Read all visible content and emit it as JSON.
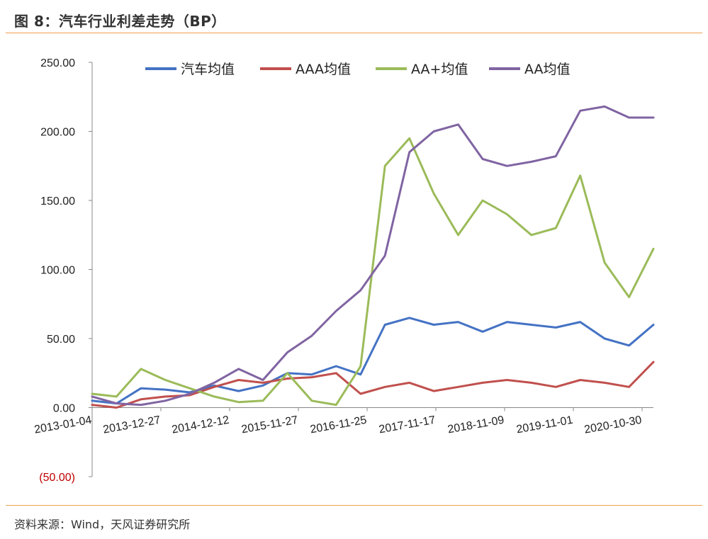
{
  "header": {
    "title": "图 8：汽车行业利差走势（BP）"
  },
  "footer": {
    "source": "资料来源：Wind，天风证券研究所"
  },
  "colors": {
    "accent": "#f0a050",
    "negative_tick": "#c00000"
  },
  "chart_data": {
    "type": "line",
    "title": "",
    "xlabel": "",
    "ylabel": "",
    "ylim": [
      -50,
      250
    ],
    "yticks": [
      -50,
      0,
      50,
      100,
      150,
      200,
      250
    ],
    "ytick_labels": [
      "(50.00)",
      "0.00",
      "50.00",
      "100.00",
      "150.00",
      "200.00",
      "250.00"
    ],
    "x_tick_labels": [
      "2013-01-04",
      "2013-12-27",
      "2014-12-12",
      "2015-11-27",
      "2016-11-25",
      "2017-11-17",
      "2018-11-09",
      "2019-11-01",
      "2020-10-30"
    ],
    "grid": false,
    "legend_position": "top",
    "x": [
      "2013-01",
      "2013-07",
      "2013-12",
      "2014-06",
      "2014-12",
      "2015-06",
      "2015-11",
      "2016-05",
      "2016-11",
      "2017-05",
      "2017-11",
      "2018-02",
      "2018-05",
      "2018-08",
      "2018-11",
      "2019-02",
      "2019-05",
      "2019-08",
      "2019-11",
      "2020-02",
      "2020-05",
      "2020-08",
      "2020-10",
      "2021-01"
    ],
    "series": [
      {
        "name": "汽车均值",
        "color": "#4472c4",
        "values": [
          5,
          3,
          14,
          13,
          11,
          16,
          12,
          16,
          25,
          24,
          30,
          24,
          60,
          65,
          60,
          62,
          55,
          62,
          60,
          58,
          62,
          50,
          45,
          60
        ]
      },
      {
        "name": "AAA均值",
        "color": "#c0504d",
        "values": [
          2,
          0,
          6,
          8,
          9,
          15,
          20,
          18,
          21,
          22,
          25,
          10,
          15,
          18,
          12,
          15,
          18,
          20,
          18,
          15,
          20,
          18,
          15,
          33
        ]
      },
      {
        "name": "AA+均值",
        "color": "#9bbb59",
        "values": [
          10,
          8,
          28,
          20,
          14,
          8,
          4,
          5,
          25,
          5,
          2,
          30,
          175,
          195,
          155,
          125,
          150,
          140,
          125,
          130,
          168,
          105,
          80,
          115
        ]
      },
      {
        "name": "AA均值",
        "color": "#8064a2",
        "values": [
          8,
          3,
          2,
          5,
          10,
          18,
          28,
          20,
          40,
          52,
          70,
          85,
          110,
          185,
          200,
          205,
          180,
          175,
          178,
          182,
          215,
          218,
          210,
          210
        ]
      }
    ]
  }
}
